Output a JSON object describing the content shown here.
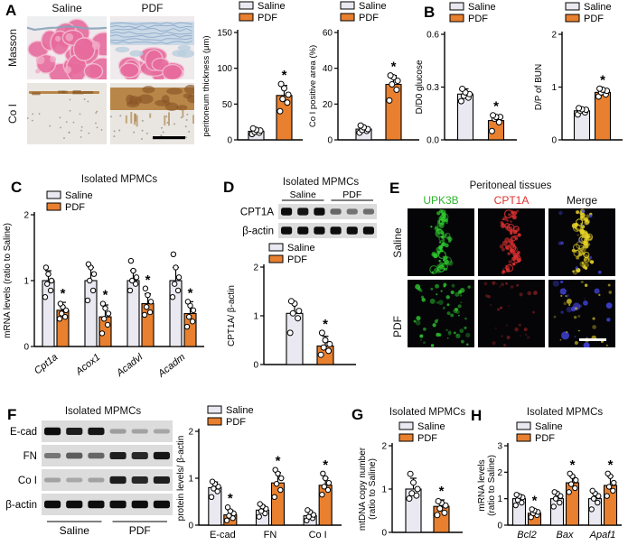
{
  "colors": {
    "saline_fill": "#EAE9F1",
    "pdf_fill": "#E8802F",
    "fluor_green": "#2FCC2F",
    "fluor_red": "#E03030",
    "fluor_yellow": "#E6D228",
    "fluor_blue": "#4545E0",
    "masson_pink": "#E76B9D",
    "masson_blue": "#7E9DC2",
    "coI_brown": "#B5813F"
  },
  "panels": {
    "A": {
      "label": "A",
      "col_headers": [
        "Saline",
        "PDF"
      ],
      "row_labels": [
        "Masson",
        "Co I"
      ]
    },
    "B": {
      "label": "B"
    },
    "C": {
      "label": "C"
    },
    "D": {
      "label": "D",
      "title": "Isolated MPMCs",
      "blot": {
        "groups": [
          "Saline",
          "PDF"
        ],
        "rows": [
          {
            "name": "CPT1A",
            "bands": [
              1,
              0.95,
              1,
              0.5,
              0.42,
              0.45
            ]
          },
          {
            "name": "β-actin",
            "bands": [
              1,
              1,
              1,
              1,
              1,
              1
            ]
          }
        ]
      }
    },
    "E": {
      "label": "E",
      "title": "Peritoneal tissues",
      "col_headers": [
        "UPK3B",
        "CPT1A",
        "Merge"
      ],
      "row_labels": [
        "Saline",
        "PDF"
      ]
    },
    "F": {
      "label": "F",
      "title": "Isolated MPMCs",
      "blot": {
        "groups": [
          "Saline",
          "PDF"
        ],
        "rows": [
          {
            "name": "E-cad",
            "bands": [
              1,
              0.9,
              0.95,
              0.18,
              0.15,
              0.13
            ]
          },
          {
            "name": "FN",
            "bands": [
              0.4,
              0.55,
              0.5,
              0.9,
              0.85,
              0.95
            ]
          },
          {
            "name": "Co I",
            "bands": [
              0.15,
              0.12,
              0.15,
              0.92,
              0.85,
              0.9
            ]
          },
          {
            "name": "β-actin",
            "bands": [
              1,
              1,
              1,
              1,
              1,
              1
            ]
          }
        ]
      }
    },
    "G": {
      "label": "G"
    },
    "H": {
      "label": "H"
    }
  },
  "chart_data": [
    {
      "id": "a1",
      "type": "bar",
      "ylabel": [
        "peritoneum thickness (μm)"
      ],
      "ylim": [
        0,
        150
      ],
      "yticks": [
        0,
        50,
        100,
        150
      ],
      "ytick_labels": [
        "0",
        "50",
        "100",
        "150"
      ],
      "categories": [
        ""
      ],
      "series": [
        {
          "name": "Saline",
          "values": [
            12
          ],
          "errors": [
            4
          ],
          "points": [
            [
              8,
              10,
              11,
              13,
              14,
              16
            ]
          ]
        },
        {
          "name": "PDF",
          "values": [
            62
          ],
          "errors": [
            14
          ],
          "points": [
            [
              40,
              52,
              57,
              63,
              72,
              78
            ]
          ],
          "sig": [
            "*"
          ]
        }
      ]
    },
    {
      "id": "a2",
      "type": "bar",
      "ylabel": [
        "Co I positive area (%)"
      ],
      "ylim": [
        0,
        60
      ],
      "yticks": [
        0,
        20,
        40,
        60
      ],
      "ytick_labels": [
        "0",
        "20",
        "40",
        "60"
      ],
      "categories": [
        ""
      ],
      "series": [
        {
          "name": "Saline",
          "values": [
            6
          ],
          "errors": [
            1.5
          ],
          "points": [
            [
              4,
              5,
              5.5,
              6,
              7,
              8
            ]
          ]
        },
        {
          "name": "PDF",
          "values": [
            31
          ],
          "errors": [
            5
          ],
          "points": [
            [
              22,
              28,
              31,
              33,
              35,
              36
            ]
          ],
          "sig": [
            "*"
          ]
        }
      ]
    },
    {
      "id": "b1",
      "type": "bar",
      "ylabel": [
        "D/D0 glucose"
      ],
      "ylim": [
        0,
        0.6
      ],
      "yticks": [
        0,
        0.3,
        0.6
      ],
      "ytick_labels": [
        "0.0",
        "0.3",
        "0.6"
      ],
      "categories": [
        ""
      ],
      "series": [
        {
          "name": "Saline",
          "values": [
            0.26
          ],
          "errors": [
            0.03
          ],
          "points": [
            [
              0.22,
              0.24,
              0.25,
              0.26,
              0.27,
              0.29
            ]
          ]
        },
        {
          "name": "PDF",
          "values": [
            0.11
          ],
          "errors": [
            0.03
          ],
          "points": [
            [
              0.05,
              0.1,
              0.12,
              0.13,
              0.13,
              0.14
            ]
          ],
          "sig": [
            "*"
          ]
        }
      ]
    },
    {
      "id": "b2",
      "type": "bar",
      "ylabel": [
        "D/P of BUN"
      ],
      "ylim": [
        0,
        2
      ],
      "yticks": [
        0,
        1,
        2
      ],
      "ytick_labels": [
        "0",
        "1",
        "2"
      ],
      "categories": [
        ""
      ],
      "series": [
        {
          "name": "Saline",
          "values": [
            0.55
          ],
          "errors": [
            0.05
          ],
          "points": [
            [
              0.48,
              0.52,
              0.55,
              0.57,
              0.58,
              0.6
            ]
          ]
        },
        {
          "name": "PDF",
          "values": [
            0.9
          ],
          "errors": [
            0.06
          ],
          "points": [
            [
              0.82,
              0.86,
              0.9,
              0.93,
              0.95,
              0.97
            ]
          ],
          "sig": [
            "*"
          ]
        }
      ]
    },
    {
      "id": "c",
      "type": "bar",
      "title": "Isolated MPMCs",
      "ylabel": [
        "mRNA levels (ratio to Saline)"
      ],
      "ylim": [
        0,
        2
      ],
      "yticks": [
        0,
        1,
        2
      ],
      "ytick_labels": [
        "0",
        "1",
        "2"
      ],
      "categories": [
        "Cpt1a",
        "Acox1",
        "Acadvl",
        "Acadm"
      ],
      "series": [
        {
          "name": "Saline",
          "values": [
            1,
            1,
            1,
            1
          ],
          "errors": [
            0.15,
            0.2,
            0.15,
            0.2
          ],
          "points": [
            [
              0.75,
              0.85,
              0.95,
              1,
              1.1,
              1.2
            ],
            [
              0.7,
              0.85,
              1,
              1.1,
              1.2,
              1.25
            ],
            [
              0.85,
              0.95,
              1,
              1.05,
              1.15,
              1.3
            ],
            [
              0.75,
              0.85,
              0.95,
              1.05,
              1.2,
              1.4
            ]
          ]
        },
        {
          "name": "PDF",
          "values": [
            0.55,
            0.45,
            0.65,
            0.5
          ],
          "errors": [
            0.12,
            0.18,
            0.15,
            0.18
          ],
          "points": [
            [
              0.42,
              0.45,
              0.5,
              0.55,
              0.6,
              0.65
            ],
            [
              0.2,
              0.33,
              0.42,
              0.5,
              0.58,
              0.65
            ],
            [
              0.48,
              0.52,
              0.6,
              0.68,
              0.78,
              0.88
            ],
            [
              0.3,
              0.38,
              0.45,
              0.55,
              0.62,
              0.68
            ]
          ],
          "sig": [
            "*",
            "*",
            "*",
            "*"
          ]
        }
      ]
    },
    {
      "id": "d",
      "type": "bar",
      "ylabel": [
        "CPT1A/ β-actin"
      ],
      "ylim": [
        0,
        2
      ],
      "yticks": [
        0,
        1,
        2
      ],
      "ytick_labels": [
        "0",
        "1",
        "2"
      ],
      "categories": [
        ""
      ],
      "series": [
        {
          "name": "Saline",
          "values": [
            1.05
          ],
          "errors": [
            0.2
          ],
          "points": [
            [
              0.65,
              0.95,
              1.05,
              1.1,
              1.25,
              1.3
            ]
          ]
        },
        {
          "name": "PDF",
          "values": [
            0.38
          ],
          "errors": [
            0.2
          ],
          "points": [
            [
              0.2,
              0.28,
              0.35,
              0.42,
              0.5,
              0.65
            ]
          ],
          "sig": [
            "*"
          ]
        }
      ]
    },
    {
      "id": "f",
      "type": "bar",
      "ylabel": [
        "protein levels/ β-actin"
      ],
      "ylim": [
        0,
        2
      ],
      "yticks": [
        0,
        1,
        2
      ],
      "ytick_labels": [
        "0",
        "1",
        "2"
      ],
      "categories": [
        "E-cad",
        "FN",
        "Co I"
      ],
      "series": [
        {
          "name": "Saline",
          "values": [
            0.8,
            0.32,
            0.2
          ],
          "errors": [
            0.12,
            0.1,
            0.08
          ],
          "points": [
            [
              0.6,
              0.72,
              0.78,
              0.82,
              0.88,
              0.93
            ],
            [
              0.18,
              0.25,
              0.3,
              0.35,
              0.4,
              0.45
            ],
            [
              0.1,
              0.15,
              0.18,
              0.22,
              0.28,
              0.32
            ]
          ]
        },
        {
          "name": "PDF",
          "values": [
            0.22,
            0.9,
            0.85
          ],
          "errors": [
            0.1,
            0.22,
            0.15
          ],
          "points": [
            [
              0.1,
              0.15,
              0.2,
              0.25,
              0.3,
              0.38
            ],
            [
              0.6,
              0.75,
              0.88,
              1,
              1.1,
              1.18
            ],
            [
              0.65,
              0.75,
              0.82,
              0.9,
              1,
              1.1
            ]
          ],
          "sig": [
            "*",
            "*",
            "*"
          ]
        }
      ]
    },
    {
      "id": "g",
      "type": "bar",
      "title": "Isolated MPMCs",
      "ylabel": [
        "mtDNA copy number",
        "(ratio to Saline)"
      ],
      "ylim": [
        0,
        2
      ],
      "yticks": [
        0,
        1,
        2
      ],
      "ytick_labels": [
        "0",
        "1",
        "2"
      ],
      "categories": [
        ""
      ],
      "series": [
        {
          "name": "Saline",
          "values": [
            1
          ],
          "errors": [
            0.25
          ],
          "points": [
            [
              0.78,
              0.85,
              0.9,
              1,
              1.15,
              1.35
            ]
          ]
        },
        {
          "name": "PDF",
          "values": [
            0.6
          ],
          "errors": [
            0.15
          ],
          "points": [
            [
              0.4,
              0.45,
              0.55,
              0.62,
              0.68,
              0.72
            ]
          ],
          "sig": [
            "*"
          ]
        }
      ]
    },
    {
      "id": "h",
      "type": "bar",
      "title": "Isolated MPMCs",
      "ylabel": [
        "mRNA levels",
        "(ratio to Saline)"
      ],
      "ylim": [
        0,
        3
      ],
      "yticks": [
        0,
        1,
        2,
        3
      ],
      "ytick_labels": [
        "0",
        "1",
        "2",
        "3"
      ],
      "categories": [
        "Bcl2",
        "Bax",
        "Apaf1"
      ],
      "series": [
        {
          "name": "Saline",
          "values": [
            1,
            1,
            1
          ],
          "errors": [
            0.15,
            0.2,
            0.2
          ],
          "points": [
            [
              0.75,
              0.85,
              0.95,
              1.05,
              1.1,
              1.15
            ],
            [
              0.7,
              0.85,
              1,
              1.1,
              1.2,
              1.25
            ],
            [
              0.6,
              0.85,
              1,
              1.1,
              1.2,
              1.3
            ]
          ]
        },
        {
          "name": "PDF",
          "values": [
            0.45,
            1.6,
            1.5
          ],
          "errors": [
            0.12,
            0.25,
            0.35
          ],
          "points": [
            [
              0.3,
              0.38,
              0.45,
              0.5,
              0.55,
              0.6
            ],
            [
              1.25,
              1.4,
              1.55,
              1.7,
              1.85,
              1.95
            ],
            [
              1.1,
              1.3,
              1.45,
              1.6,
              1.85,
              1.95
            ]
          ],
          "sig": [
            "*",
            "*",
            "*"
          ]
        }
      ]
    }
  ]
}
